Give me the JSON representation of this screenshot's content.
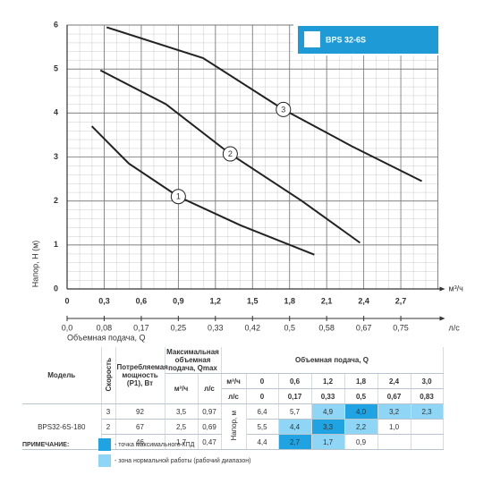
{
  "chart_data": {
    "type": "line",
    "title": "BPS 32-6S",
    "xlabel": "м³/ч",
    "x2label": "л/с",
    "x2title": "Объемная подача, Q",
    "ylabel": "Напор, H (м)",
    "xlim": [
      0,
      3.0
    ],
    "ylim": [
      0,
      6
    ],
    "x2lim": [
      0,
      0.8333
    ],
    "xticks": [
      0,
      {
        "value": 0.3,
        "label": "0,3"
      },
      {
        "value": 0.6,
        "label": "0,6"
      },
      {
        "value": 0.9,
        "label": "0,9"
      },
      {
        "value": 1.2,
        "label": "1,2"
      },
      {
        "value": 1.5,
        "label": "1,5"
      },
      {
        "value": 1.8,
        "label": "1,8"
      },
      {
        "value": 2.1,
        "label": "2,1"
      },
      {
        "value": 2.4,
        "label": "2,4"
      },
      {
        "value": 2.7,
        "label": "2,7"
      }
    ],
    "x2ticks": [
      {
        "value": 0,
        "label": "0,0"
      },
      {
        "value": 0.0833,
        "label": "0,08"
      },
      {
        "value": 0.1667,
        "label": "0,17"
      },
      {
        "value": 0.25,
        "label": "0,25"
      },
      {
        "value": 0.3333,
        "label": "0,33"
      },
      {
        "value": 0.4167,
        "label": "0,42"
      },
      {
        "value": 0.5,
        "label": "0,5"
      },
      {
        "value": 0.5833,
        "label": "0,58"
      },
      {
        "value": 0.6667,
        "label": "0,67"
      },
      {
        "value": 0.75,
        "label": "0,75"
      }
    ],
    "yticks": [
      0,
      1,
      2,
      3,
      4,
      5,
      6
    ],
    "grid": true,
    "minor_grid_step": {
      "x": 0.1,
      "y": 0.2
    },
    "badge_color": "#1e9ad6",
    "series": [
      {
        "name": "1",
        "color": "#222222",
        "x": [
          0.2,
          0.5,
          0.9,
          1.4,
          2.0
        ],
        "values": [
          3.7,
          2.85,
          2.1,
          1.45,
          0.78
        ]
      },
      {
        "name": "2",
        "color": "#222222",
        "x": [
          0.27,
          0.8,
          1.32,
          1.9,
          2.37
        ],
        "values": [
          4.97,
          4.2,
          3.07,
          2.0,
          1.05
        ]
      },
      {
        "name": "3",
        "color": "#222222",
        "x": [
          0.32,
          1.1,
          1.75,
          2.3,
          2.87
        ],
        "values": [
          5.95,
          5.25,
          4.08,
          3.25,
          2.45
        ]
      }
    ]
  },
  "table": {
    "headers": {
      "model": "Модель",
      "speed": "Скорость",
      "power": "Потребляемая мощность (P1), Вт",
      "qmax": "Максимальная объемная подача, Qmax",
      "qmax_units": [
        "м³/ч",
        "л/с"
      ],
      "flow": "Объемная подача, Q",
      "flow_units": [
        "м³/ч",
        "л/с"
      ],
      "head": "Напор, м",
      "flow_m3h": [
        "0",
        "0,6",
        "1,2",
        "1,8",
        "2,4",
        "3,0"
      ],
      "flow_ls": [
        "0",
        "0,17",
        "0,33",
        "0,5",
        "0,67",
        "0,83"
      ]
    },
    "model": "BPS32-6S-180",
    "zone_colors": {
      "best": "#1fa3e3",
      "range": "#8fd5f5"
    },
    "rows": [
      {
        "speed": "3",
        "power": "92",
        "qmax": [
          "3,5",
          "0,97"
        ],
        "head": [
          "6,4",
          "5,7",
          "4,9",
          "4,0",
          "3,2",
          "2,3"
        ],
        "zones": [
          null,
          null,
          "range",
          "best",
          "range",
          "range"
        ]
      },
      {
        "speed": "2",
        "power": "67",
        "qmax": [
          "2,5",
          "0,69"
        ],
        "head": [
          "5,5",
          "4,4",
          "3,3",
          "2,2",
          "1,0",
          null
        ],
        "zones": [
          null,
          "range",
          "best",
          "range",
          null,
          null
        ]
      },
      {
        "speed": "1",
        "power": "46",
        "qmax": [
          "1,7",
          "0,47"
        ],
        "head": [
          "4,4",
          "2,7",
          "1,7",
          "0,9",
          null,
          null
        ],
        "zones": [
          null,
          "best",
          "range",
          null,
          null,
          null
        ]
      }
    ]
  },
  "notes": {
    "title": "ПРИМЕЧАНИЕ:",
    "items": [
      {
        "zone": "best",
        "text": "- точка максимального КПД"
      },
      {
        "zone": "range",
        "text": "- зона нормальной работы (рабочий диапазон)"
      }
    ]
  }
}
